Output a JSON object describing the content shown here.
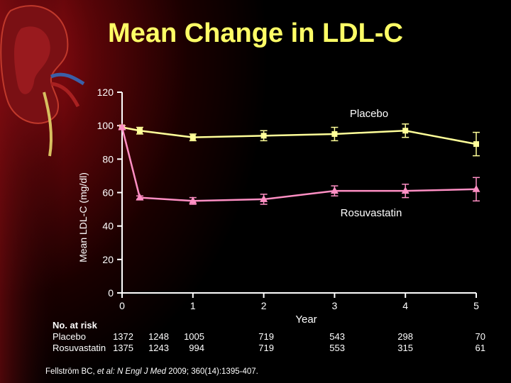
{
  "title": "Mean Change in LDL-C",
  "colors": {
    "placebo": "#ffff99",
    "rosuvastatin": "#ff8fc4",
    "title": "#ffff66",
    "axis": "#ffffff"
  },
  "chart_data": {
    "type": "line",
    "xlabel": "Year",
    "ylabel": "Mean LDL-C (mg/dl)",
    "xlim": [
      0,
      5
    ],
    "ylim": [
      0,
      120
    ],
    "xticks": [
      "0",
      "1",
      "2",
      "3",
      "4",
      "5"
    ],
    "yticks": [
      "0",
      "20",
      "40",
      "60",
      "80",
      "100",
      "120"
    ],
    "series": [
      {
        "name": "Placebo",
        "marker": "square",
        "x": [
          0,
          0.25,
          1,
          2,
          3,
          4,
          5
        ],
        "y": [
          99,
          97,
          93,
          94,
          95,
          97,
          89
        ],
        "err": [
          1,
          2,
          2,
          3,
          4,
          4,
          7
        ]
      },
      {
        "name": "Rosuvastatin",
        "marker": "triangle",
        "x": [
          0,
          0.25,
          1,
          2,
          3,
          4,
          5
        ],
        "y": [
          99,
          57,
          55,
          56,
          61,
          61,
          62
        ],
        "err": [
          1,
          1,
          2,
          3,
          3,
          4,
          7
        ]
      }
    ]
  },
  "at_risk": {
    "heading": "No. at risk",
    "rows": [
      {
        "label": "Placebo",
        "values": [
          "1372",
          "1248",
          "1005",
          "719",
          "543",
          "298",
          "70"
        ]
      },
      {
        "label": "Rosuvastatin",
        "values": [
          "1375",
          "1243",
          "994",
          "719",
          "553",
          "315",
          "61"
        ]
      }
    ]
  },
  "citation": {
    "authors": "Fellström BC,",
    "etal": "et al:",
    "journal": "N Engl J Med",
    "details": "2009; 360(14):1395-407."
  }
}
